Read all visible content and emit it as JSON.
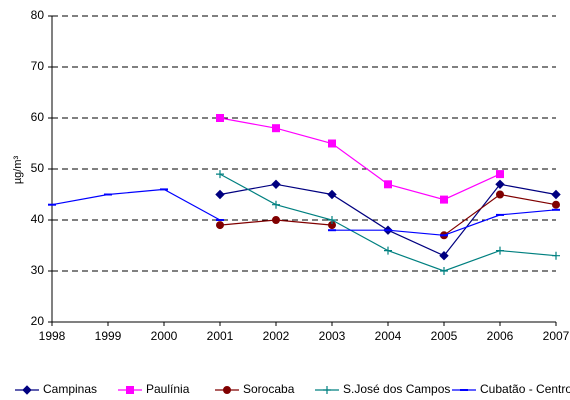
{
  "chart_data": {
    "type": "line",
    "y_label": "µg/m³",
    "x": [
      1998,
      1999,
      2000,
      2001,
      2002,
      2003,
      2004,
      2005,
      2006,
      2007
    ],
    "xlim": [
      1998,
      2007
    ],
    "xticks": [
      1998,
      1999,
      2000,
      2001,
      2002,
      2003,
      2004,
      2005,
      2006,
      2007
    ],
    "ylim": [
      20,
      80
    ],
    "yticks": [
      20,
      30,
      40,
      50,
      60,
      70,
      80
    ],
    "grid": true,
    "legend": "bottom",
    "series": [
      {
        "name": "Campinas",
        "color": "#000080",
        "marker": "diamond",
        "values": [
          null,
          null,
          null,
          45,
          47,
          45,
          38,
          33,
          47,
          45
        ]
      },
      {
        "name": "Paulínia",
        "color": "#ff00ff",
        "marker": "square",
        "values": [
          null,
          null,
          null,
          60,
          58,
          55,
          47,
          44,
          49,
          null
        ]
      },
      {
        "name": "Sorocaba",
        "color": "#800000",
        "marker": "circle",
        "values": [
          null,
          null,
          null,
          39,
          40,
          39,
          null,
          37,
          45,
          43
        ]
      },
      {
        "name": "S.José dos Campos",
        "color": "#008080",
        "marker": "plus",
        "values": [
          null,
          null,
          null,
          49,
          43,
          40,
          34,
          30,
          34,
          33
        ]
      },
      {
        "name": "Cubatão - Centro",
        "color": "#0000ff",
        "marker": "dash",
        "values": [
          43,
          45,
          46,
          40,
          null,
          38,
          38,
          37,
          41,
          42
        ]
      }
    ]
  }
}
